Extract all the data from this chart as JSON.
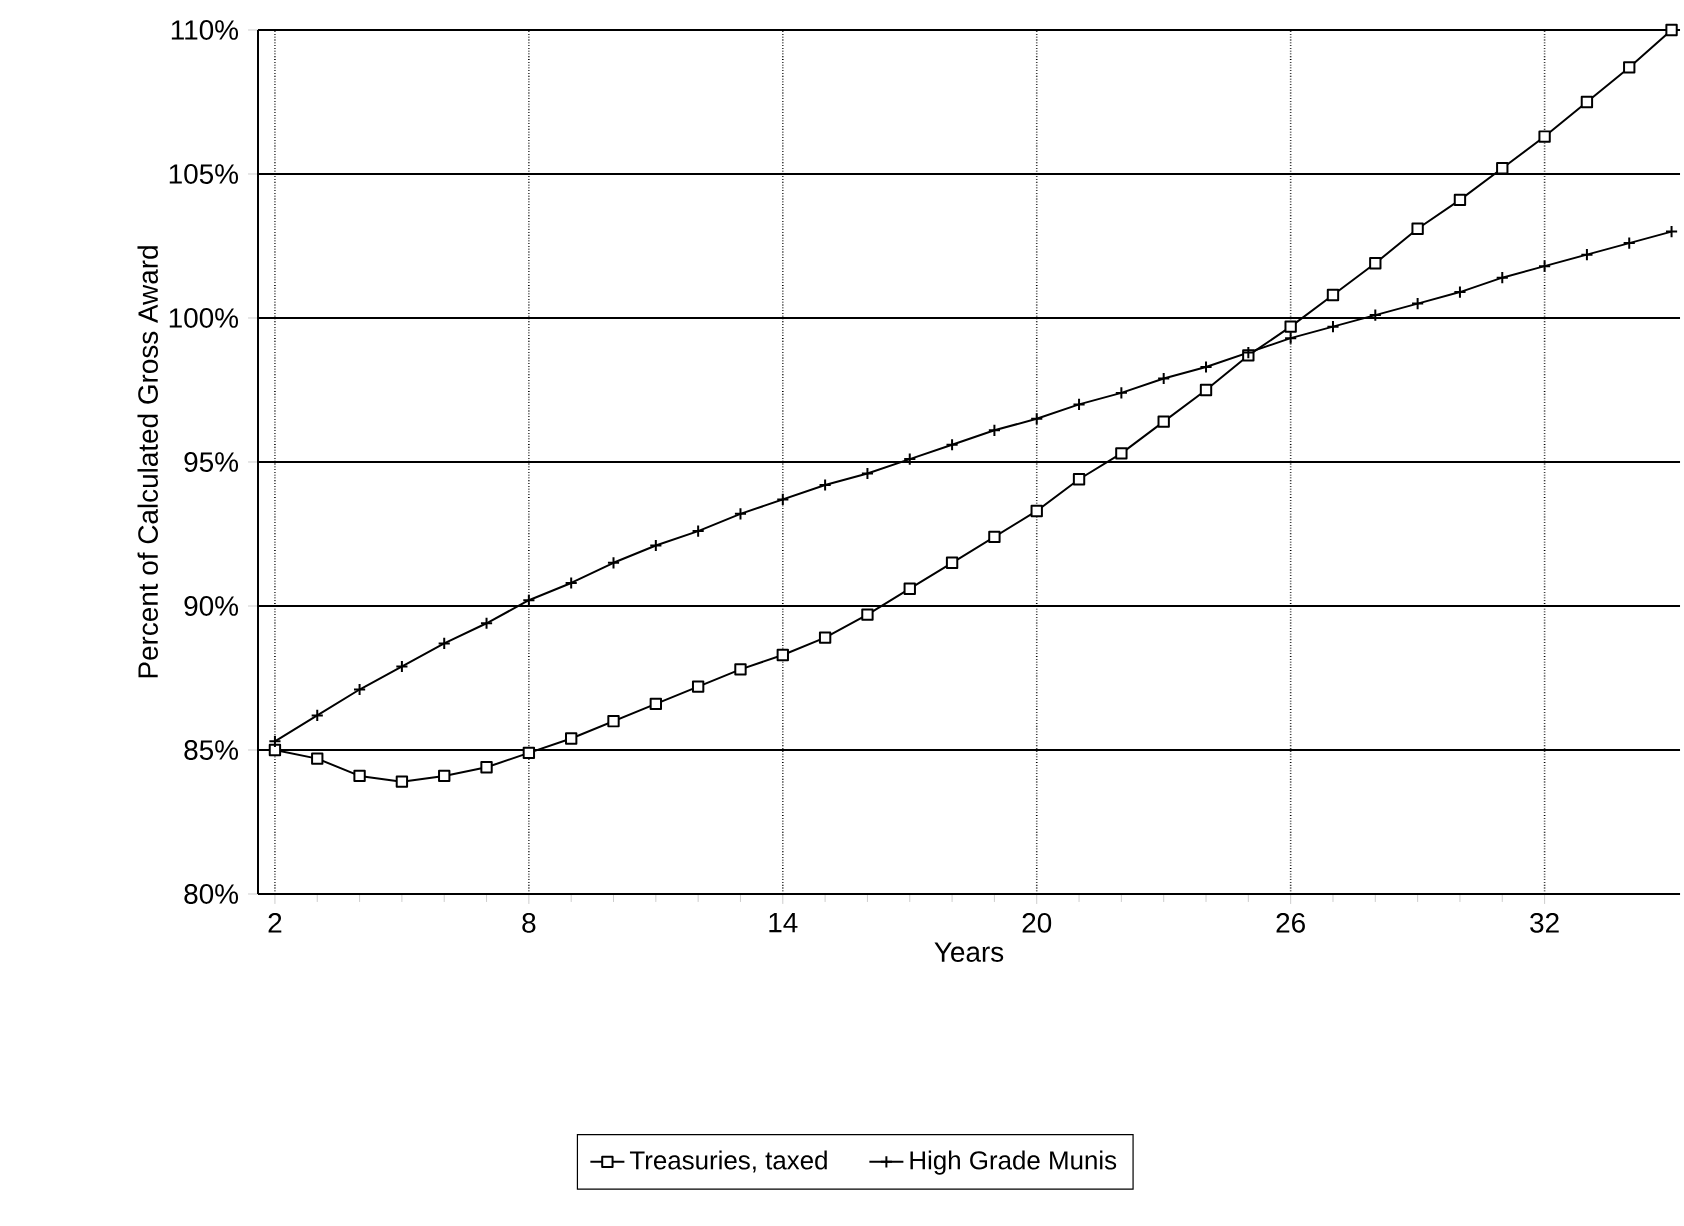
{
  "chart_data": {
    "type": "line",
    "xlabel": "Years",
    "ylabel": "Percent of Calculated Gross Award",
    "x": [
      2,
      3,
      4,
      5,
      6,
      7,
      8,
      9,
      10,
      11,
      12,
      13,
      14,
      15,
      16,
      17,
      18,
      19,
      20,
      21,
      22,
      23,
      24,
      25,
      26,
      27,
      28,
      29,
      30,
      31,
      32,
      33,
      34,
      35
    ],
    "series": [
      {
        "name": "Treasuries, taxed",
        "color": "#000000",
        "marker": "square",
        "values": [
          85.0,
          84.7,
          84.1,
          83.9,
          84.1,
          84.4,
          84.9,
          85.4,
          86.0,
          86.6,
          87.2,
          87.8,
          88.3,
          88.9,
          89.7,
          90.6,
          91.5,
          92.4,
          93.3,
          94.4,
          95.3,
          96.4,
          97.5,
          98.7,
          99.7,
          100.8,
          101.9,
          103.1,
          104.1,
          105.2,
          106.3,
          107.5,
          108.7,
          110.0
        ]
      },
      {
        "name": "High Grade Munis",
        "color": "#000000",
        "marker": "cross",
        "values": [
          85.3,
          86.2,
          87.1,
          87.9,
          88.7,
          89.4,
          90.2,
          90.8,
          91.5,
          92.1,
          92.6,
          93.2,
          93.7,
          94.2,
          94.6,
          95.1,
          95.6,
          96.1,
          96.5,
          97.0,
          97.4,
          97.9,
          98.3,
          98.8,
          99.3,
          99.7,
          100.1,
          100.5,
          100.9,
          101.4,
          101.8,
          102.2,
          102.6,
          103.0
        ]
      }
    ],
    "xlim": [
      1.6,
      35.2
    ],
    "xticks": [
      2,
      8,
      14,
      20,
      26,
      32
    ],
    "ylim": [
      80,
      110
    ],
    "yticks": [
      {
        "value": 80,
        "label": "80%"
      },
      {
        "value": 85,
        "label": "85%"
      },
      {
        "value": 90,
        "label": "90%"
      },
      {
        "value": 95,
        "label": "95%"
      },
      {
        "value": 100,
        "label": "100%"
      },
      {
        "value": 105,
        "label": "105%"
      },
      {
        "value": 110,
        "label": "110%"
      }
    ],
    "grid": true,
    "legend": "bottom",
    "line_style": "solid"
  }
}
